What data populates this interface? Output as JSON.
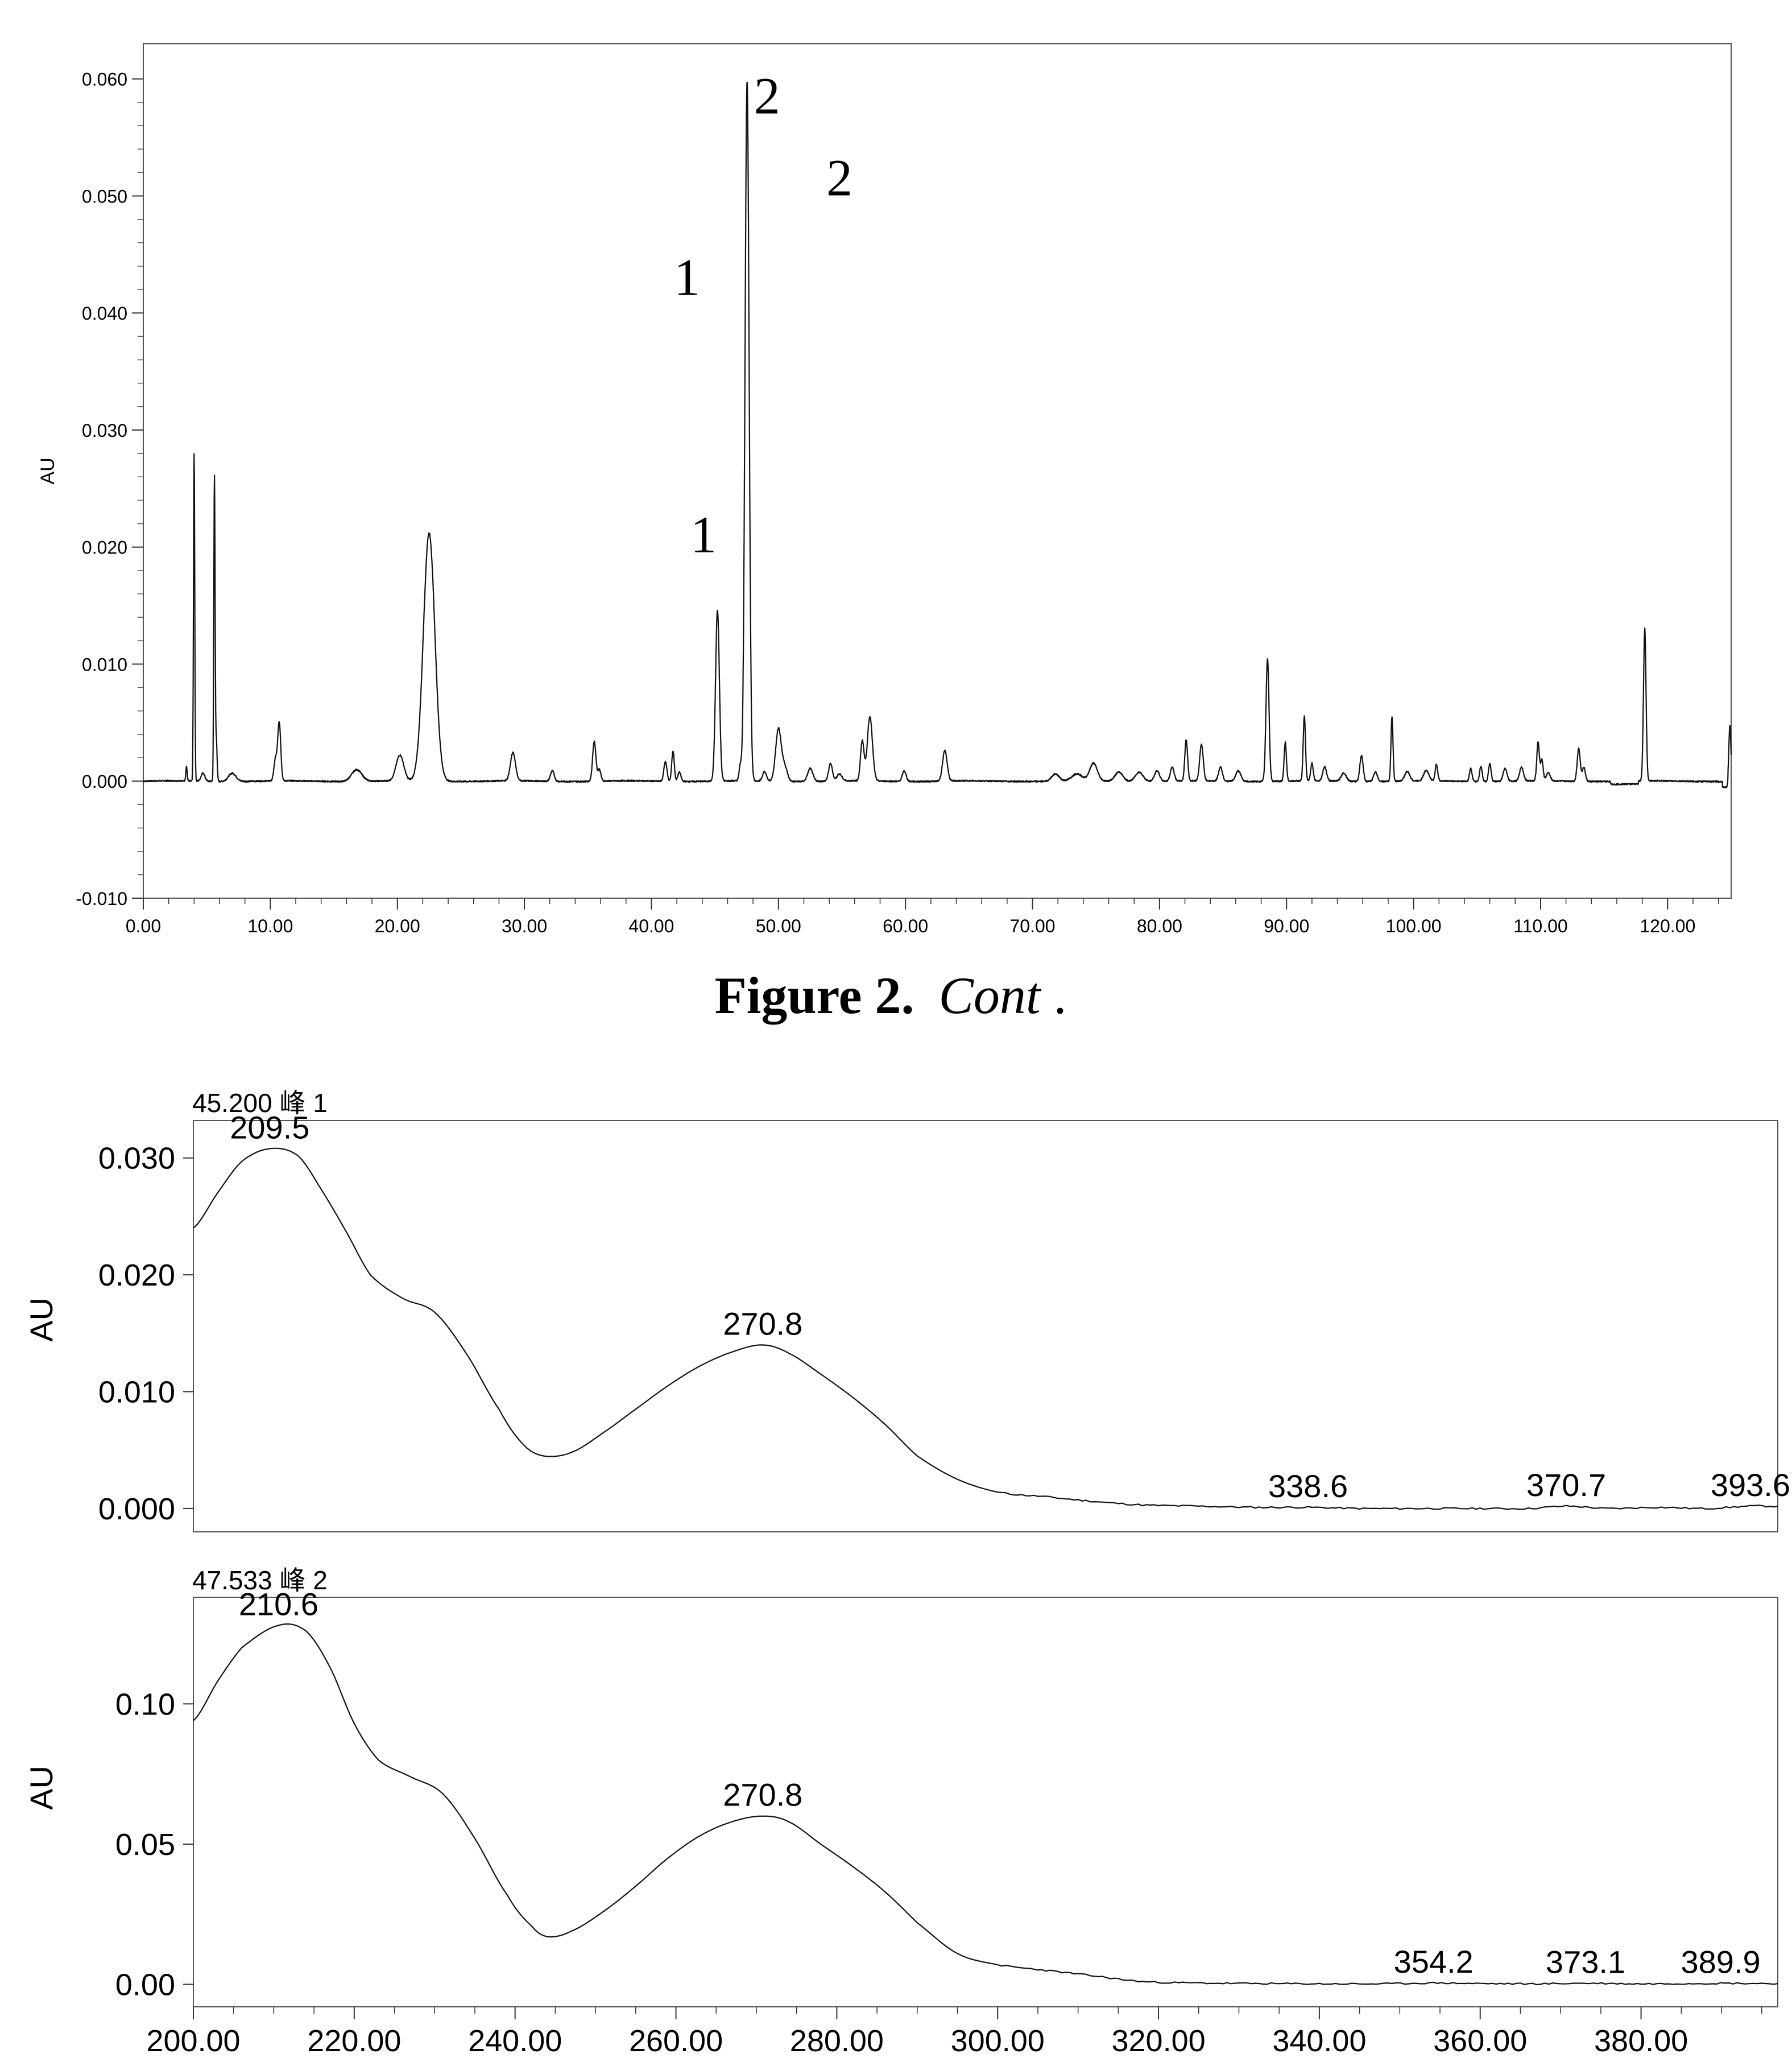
{
  "caption": {
    "bold": "Figure 2.",
    "italic": "Cont",
    "tail": "."
  },
  "chart_data": [
    {
      "type": "line",
      "title": "",
      "xlabel": "",
      "ylabel": "AU",
      "xlim": [
        0,
        125
      ],
      "ylim": [
        -0.01,
        0.063
      ],
      "xticks": [
        0,
        10,
        20,
        30,
        40,
        50,
        60,
        70,
        80,
        90,
        100,
        110,
        120
      ],
      "xtick_labels": [
        "0.00",
        "10.00",
        "20.00",
        "30.00",
        "40.00",
        "50.00",
        "60.00",
        "70.00",
        "80.00",
        "90.00",
        "100.00",
        "110.00",
        "120.00"
      ],
      "yticks": [
        -0.01,
        0.0,
        0.01,
        0.02,
        0.03,
        0.04,
        0.05,
        0.06
      ],
      "ytick_labels": [
        "-0.010",
        "0.000",
        "0.010",
        "0.020",
        "0.030",
        "0.040",
        "0.050",
        "0.060"
      ],
      "peaks": [
        {
          "x": 3.4,
          "h": 0.0012,
          "w": 0.05
        },
        {
          "x": 4.0,
          "h": 0.028,
          "w": 0.05
        },
        {
          "x": 4.7,
          "h": 0.0007,
          "w": 0.15
        },
        {
          "x": 5.6,
          "h": 0.026,
          "w": 0.05
        },
        {
          "x": 5.75,
          "h": 0.0035,
          "w": 0.06
        },
        {
          "x": 7.0,
          "h": 0.0007,
          "w": 0.3
        },
        {
          "x": 10.4,
          "h": 0.0018,
          "w": 0.12
        },
        {
          "x": 10.7,
          "h": 0.005,
          "w": 0.12
        },
        {
          "x": 16.8,
          "h": 0.001,
          "w": 0.4
        },
        {
          "x": 20.2,
          "h": 0.0022,
          "w": 0.3
        },
        {
          "x": 22.5,
          "h": 0.0212,
          "w": 0.45
        },
        {
          "x": 29.1,
          "h": 0.0024,
          "w": 0.2
        },
        {
          "x": 32.2,
          "h": 0.0009,
          "w": 0.15
        },
        {
          "x": 35.5,
          "h": 0.0034,
          "w": 0.13
        },
        {
          "x": 35.9,
          "h": 0.001,
          "w": 0.12
        },
        {
          "x": 41.1,
          "h": 0.0017,
          "w": 0.12
        },
        {
          "x": 41.7,
          "h": 0.0026,
          "w": 0.1
        },
        {
          "x": 42.2,
          "h": 0.0008,
          "w": 0.12
        },
        {
          "x": 45.2,
          "h": 0.0146,
          "w": 0.15
        },
        {
          "x": 47.0,
          "h": 0.0013,
          "w": 0.1
        },
        {
          "x": 47.53,
          "h": 0.0598,
          "w": 0.16
        },
        {
          "x": 48.9,
          "h": 0.0008,
          "w": 0.15
        },
        {
          "x": 50.0,
          "h": 0.0045,
          "w": 0.22
        },
        {
          "x": 50.5,
          "h": 0.0012,
          "w": 0.2
        },
        {
          "x": 52.5,
          "h": 0.0011,
          "w": 0.2
        },
        {
          "x": 54.1,
          "h": 0.0015,
          "w": 0.15
        },
        {
          "x": 54.8,
          "h": 0.0006,
          "w": 0.2
        },
        {
          "x": 56.6,
          "h": 0.0034,
          "w": 0.14
        },
        {
          "x": 57.2,
          "h": 0.0055,
          "w": 0.2
        },
        {
          "x": 59.9,
          "h": 0.0009,
          "w": 0.15
        },
        {
          "x": 63.1,
          "h": 0.0026,
          "w": 0.18
        },
        {
          "x": 71.8,
          "h": 0.0006,
          "w": 0.3
        },
        {
          "x": 73.5,
          "h": 0.0006,
          "w": 0.4
        },
        {
          "x": 74.8,
          "h": 0.0015,
          "w": 0.3
        },
        {
          "x": 76.8,
          "h": 0.0008,
          "w": 0.3
        },
        {
          "x": 78.4,
          "h": 0.0008,
          "w": 0.3
        },
        {
          "x": 79.8,
          "h": 0.0009,
          "w": 0.2
        },
        {
          "x": 81.0,
          "h": 0.0012,
          "w": 0.15
        },
        {
          "x": 82.1,
          "h": 0.0035,
          "w": 0.11
        },
        {
          "x": 83.3,
          "h": 0.0031,
          "w": 0.14
        },
        {
          "x": 84.8,
          "h": 0.0012,
          "w": 0.15
        },
        {
          "x": 86.2,
          "h": 0.0009,
          "w": 0.2
        },
        {
          "x": 88.5,
          "h": 0.0105,
          "w": 0.12
        },
        {
          "x": 89.9,
          "h": 0.0033,
          "w": 0.09
        },
        {
          "x": 91.4,
          "h": 0.0055,
          "w": 0.09
        },
        {
          "x": 92.0,
          "h": 0.0015,
          "w": 0.1
        },
        {
          "x": 93.0,
          "h": 0.0012,
          "w": 0.15
        },
        {
          "x": 94.5,
          "h": 0.0007,
          "w": 0.2
        },
        {
          "x": 95.9,
          "h": 0.0022,
          "w": 0.13
        },
        {
          "x": 97.0,
          "h": 0.0008,
          "w": 0.15
        },
        {
          "x": 98.3,
          "h": 0.0055,
          "w": 0.08
        },
        {
          "x": 99.5,
          "h": 0.0008,
          "w": 0.2
        },
        {
          "x": 101.0,
          "h": 0.0009,
          "w": 0.2
        },
        {
          "x": 101.8,
          "h": 0.0014,
          "w": 0.1
        },
        {
          "x": 104.5,
          "h": 0.0011,
          "w": 0.1
        },
        {
          "x": 105.3,
          "h": 0.0013,
          "w": 0.1
        },
        {
          "x": 106.0,
          "h": 0.0015,
          "w": 0.1
        },
        {
          "x": 107.2,
          "h": 0.0011,
          "w": 0.15
        },
        {
          "x": 108.5,
          "h": 0.0012,
          "w": 0.15
        },
        {
          "x": 109.8,
          "h": 0.0033,
          "w": 0.1
        },
        {
          "x": 110.1,
          "h": 0.0018,
          "w": 0.1
        },
        {
          "x": 110.6,
          "h": 0.0007,
          "w": 0.15
        },
        {
          "x": 113.0,
          "h": 0.0028,
          "w": 0.12
        },
        {
          "x": 113.4,
          "h": 0.0012,
          "w": 0.12
        },
        {
          "x": 118.2,
          "h": 0.013,
          "w": 0.1
        },
        {
          "x": 124.9,
          "h": 0.0048,
          "w": 0.08
        }
      ],
      "annotations": [
        {
          "text": "2",
          "x": 49.1,
          "y": 0.0585
        },
        {
          "text": "2",
          "x": 54.8,
          "y": 0.0515
        },
        {
          "text": "1",
          "x": 42.8,
          "y": 0.043
        },
        {
          "text": "1",
          "x": 44.1,
          "y": 0.021
        }
      ]
    },
    {
      "type": "line",
      "title": "45.200 峰 1",
      "xlabel": "",
      "ylabel": "AU",
      "xlim": [
        200,
        397
      ],
      "ylim": [
        -0.002,
        0.0332
      ],
      "yticks": [
        0.0,
        0.01,
        0.02,
        0.03
      ],
      "ytick_labels": [
        "0.000",
        "0.010",
        "0.020",
        "0.030"
      ],
      "x": [
        200,
        203,
        206,
        209.5,
        213,
        216,
        219,
        222,
        226,
        230,
        234,
        238,
        241,
        243.5,
        247,
        251,
        255,
        259,
        263,
        267,
        270.8,
        274,
        278,
        282,
        286,
        290,
        295,
        300,
        306,
        312,
        318,
        325,
        332,
        338.6,
        345,
        352,
        360,
        366,
        370.7,
        376,
        382,
        388,
        393.6,
        397
      ],
      "y": [
        0.024,
        0.027,
        0.0297,
        0.0308,
        0.0302,
        0.0272,
        0.0237,
        0.02,
        0.018,
        0.0168,
        0.0132,
        0.0085,
        0.0055,
        0.0045,
        0.0048,
        0.0065,
        0.0085,
        0.0105,
        0.0122,
        0.0134,
        0.014,
        0.0133,
        0.0115,
        0.0095,
        0.0072,
        0.0045,
        0.0025,
        0.0014,
        0.001,
        0.0006,
        0.0003,
        0.0002,
        0.0001,
        0.0001,
        0.0,
        0.0,
        0.0,
        0.0,
        0.0002,
        0.0,
        0.0001,
        0.0,
        0.0002,
        0.0002
      ],
      "peak_labels": [
        {
          "text": "209.5",
          "x": 209.5,
          "y": 0.0308
        },
        {
          "text": "270.8",
          "x": 270.8,
          "y": 0.014
        },
        {
          "text": "338.6",
          "x": 338.6,
          "y": 0.0001
        },
        {
          "text": "370.7",
          "x": 370.7,
          "y": 0.0002
        },
        {
          "text": "393.6",
          "x": 393.6,
          "y": 0.0002
        }
      ]
    },
    {
      "type": "line",
      "title": "47.533 峰 2",
      "xlabel": "",
      "ylabel": "AU",
      "xlim": [
        200,
        397
      ],
      "xticks": [
        200,
        220,
        240,
        260,
        280,
        300,
        320,
        340,
        360,
        380
      ],
      "xtick_labels": [
        "200.00",
        "220.00",
        "240.00",
        "260.00",
        "280.00",
        "300.00",
        "320.00",
        "340.00",
        "360.00",
        "380.00"
      ],
      "ylim": [
        -0.008,
        0.138
      ],
      "yticks": [
        0.0,
        0.05,
        0.1
      ],
      "ytick_labels": [
        "0.00",
        "0.05",
        "0.10"
      ],
      "x": [
        200,
        203,
        206,
        210.6,
        214,
        217,
        220,
        223,
        227,
        231,
        235,
        239,
        242,
        244,
        247,
        251,
        255,
        259,
        263,
        267,
        270.8,
        274,
        278,
        282,
        286,
        290,
        295,
        300,
        306,
        312,
        318,
        325,
        332,
        340,
        348,
        354.2,
        360,
        367,
        373.1,
        380,
        389.9,
        397
      ],
      "y": [
        0.094,
        0.108,
        0.12,
        0.128,
        0.126,
        0.113,
        0.093,
        0.08,
        0.074,
        0.068,
        0.052,
        0.032,
        0.021,
        0.017,
        0.019,
        0.026,
        0.035,
        0.045,
        0.053,
        0.058,
        0.06,
        0.058,
        0.05,
        0.042,
        0.033,
        0.022,
        0.011,
        0.007,
        0.005,
        0.003,
        0.001,
        0.0005,
        0.0003,
        0.0002,
        0.0002,
        0.0005,
        0.0003,
        0.0002,
        0.0004,
        0.0002,
        0.0004,
        0.0003
      ],
      "peak_labels": [
        {
          "text": "210.6",
          "x": 210.6,
          "y": 0.128
        },
        {
          "text": "270.8",
          "x": 270.8,
          "y": 0.06
        },
        {
          "text": "354.2",
          "x": 354.2,
          "y": 0.0005
        },
        {
          "text": "373.1",
          "x": 373.1,
          "y": 0.0004
        },
        {
          "text": "389.9",
          "x": 389.9,
          "y": 0.0004
        }
      ]
    }
  ]
}
